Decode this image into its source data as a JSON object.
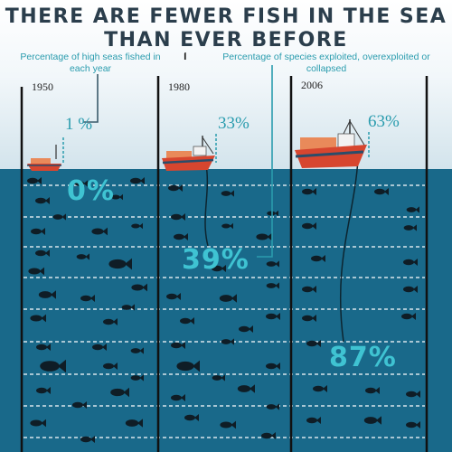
{
  "title": {
    "line1": "There are fewer fish in the sea",
    "line2": "than ever before"
  },
  "captions": {
    "high_seas": "Percentage of high seas fished in each year",
    "species": "Percentage of species exploited, overexploited or collapsed",
    "separator": "I"
  },
  "years": [
    {
      "year": "1950",
      "high_seas_fished": "1 %",
      "species_exploited": "0%"
    },
    {
      "year": "1980",
      "high_seas_fished": "33%",
      "species_exploited": "39%"
    },
    {
      "year": "2006",
      "high_seas_fished": "63%",
      "species_exploited": "87%"
    }
  ],
  "colors": {
    "sea": "#19698a",
    "title": "#2b3e4c",
    "accent": "#2a9cae",
    "big_number": "#3fc3d2",
    "fish": "#0f1d26",
    "boat_hull": "#d7462f",
    "boat_cabin": "#e98a5a"
  }
}
